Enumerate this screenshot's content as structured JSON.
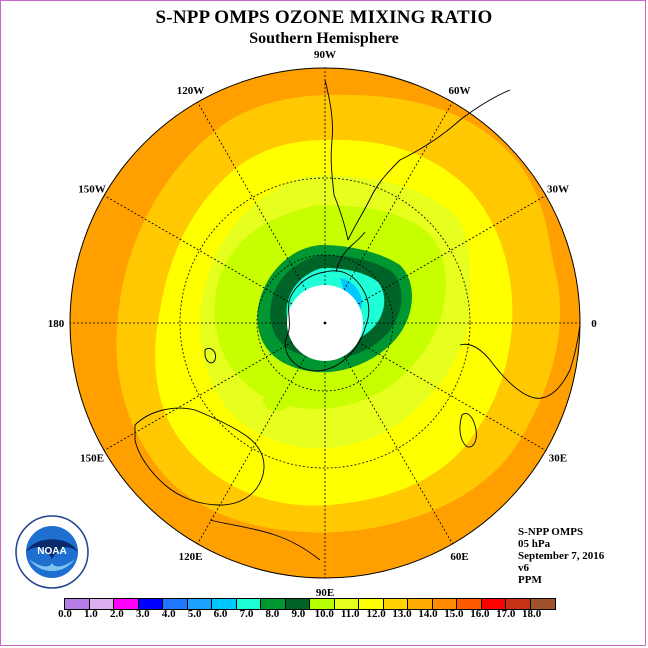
{
  "title": "S-NPP OMPS OZONE MIXING RATIO",
  "subtitle": "Southern Hemisphere",
  "longitude_labels": [
    {
      "text": "90W",
      "deg": -90
    },
    {
      "text": "60W",
      "deg": -60
    },
    {
      "text": "30W",
      "deg": -30
    },
    {
      "text": "0",
      "deg": 0
    },
    {
      "text": "30E",
      "deg": 30
    },
    {
      "text": "60E",
      "deg": 60
    },
    {
      "text": "90E",
      "deg": 90
    },
    {
      "text": "120E",
      "deg": 120
    },
    {
      "text": "150E",
      "deg": 150
    },
    {
      "text": "180",
      "deg": 180
    },
    {
      "text": "150W",
      "deg": -150
    },
    {
      "text": "120W",
      "deg": -120
    }
  ],
  "info": {
    "instrument": "S-NPP OMPS",
    "level": "05 hPa",
    "date": "September 7, 2016",
    "version": "v6",
    "units": "PPM"
  },
  "logo": {
    "text": "NOAA",
    "ring_text": "NATIONAL OCEANIC AND ATMOSPHERIC ADMINISTRATION · U.S. DEPARTMENT OF COMMERCE"
  },
  "colorbar": {
    "colors": [
      "#b57de8",
      "#dcb0ef",
      "#ff00ff",
      "#0000ff",
      "#1e78ff",
      "#1ea0ff",
      "#00c8ff",
      "#1effd7",
      "#009632",
      "#006428",
      "#b4ff00",
      "#e6ff1e",
      "#ffff00",
      "#ffd200",
      "#ffaa00",
      "#ff8c00",
      "#ff5a00",
      "#ff0000",
      "#c83214",
      "#a0522d"
    ],
    "tick_labels": [
      "0.0",
      "1.0",
      "2.0",
      "3.0",
      "4.0",
      "5.0",
      "6.0",
      "7.0",
      "8.0",
      "9.0",
      "10.0",
      "11.0",
      "12.0",
      "13.0",
      "14.0",
      "15.0",
      "16.0",
      "17.0",
      "18.0"
    ]
  },
  "field_colors": {
    "outer": "#ffa000",
    "band14": "#ffc800",
    "band13": "#ffff00",
    "band12": "#e6ff1e",
    "band11": "#c8ff00",
    "band10": "#009632",
    "band9": "#006428",
    "band8": "#1effd7",
    "band7": "#00c8ff",
    "pole": "#ffffff"
  }
}
